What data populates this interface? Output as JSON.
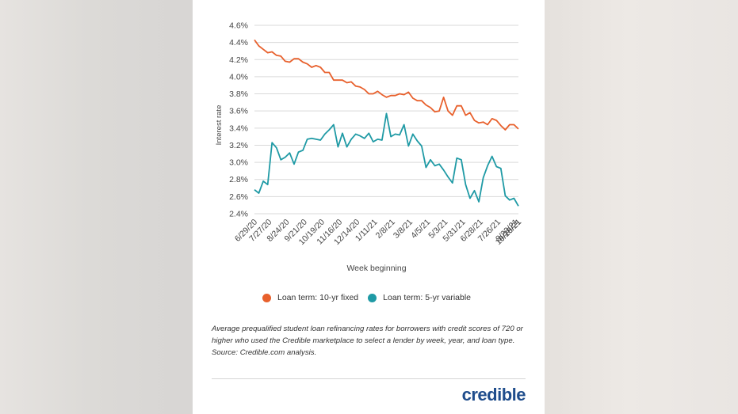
{
  "chart_data": {
    "type": "line",
    "xlabel": "Week beginning",
    "ylabel": "Interest rate",
    "ylim": [
      2.4,
      4.6
    ],
    "yticks": [
      "2.4%",
      "2.6%",
      "2.8%",
      "3.0%",
      "3.2%",
      "3.4%",
      "3.6%",
      "3.8%",
      "4.0%",
      "4.2%",
      "4.4%",
      "4.6%"
    ],
    "x_tick_labels": [
      "6/29/20",
      "7/27/20",
      "8/24/20",
      "9/21/20",
      "10/19/20",
      "11/16/20",
      "12/14/20",
      "1/11/21",
      "2/8/21",
      "3/8/21",
      "4/5/21",
      "5/3/21",
      "5/31/21",
      "6/28/21",
      "7/26/21",
      "8/23/21",
      "9/20/21",
      "10/18/21"
    ],
    "grid": "horizontal",
    "legend_position": "bottom",
    "series": [
      {
        "name": "Loan term: 10-yr fixed",
        "color": "#e8602c",
        "values": [
          4.43,
          4.36,
          4.32,
          4.28,
          4.29,
          4.25,
          4.24,
          4.18,
          4.17,
          4.21,
          4.21,
          4.17,
          4.15,
          4.11,
          4.13,
          4.11,
          4.05,
          4.05,
          3.96,
          3.96,
          3.96,
          3.93,
          3.94,
          3.89,
          3.88,
          3.85,
          3.8,
          3.8,
          3.83,
          3.79,
          3.76,
          3.78,
          3.78,
          3.8,
          3.79,
          3.82,
          3.75,
          3.72,
          3.72,
          3.67,
          3.64,
          3.59,
          3.6,
          3.76,
          3.6,
          3.55,
          3.66,
          3.66,
          3.55,
          3.58,
          3.49,
          3.46,
          3.47,
          3.44,
          3.51,
          3.49,
          3.43,
          3.38,
          3.44,
          3.44,
          3.39
        ]
      },
      {
        "name": "Loan term: 5-yr variable",
        "color": "#1f9aa5",
        "values": [
          2.68,
          2.64,
          2.78,
          2.74,
          3.23,
          3.17,
          3.03,
          3.06,
          3.11,
          2.98,
          3.12,
          3.14,
          3.27,
          3.28,
          3.27,
          3.26,
          3.33,
          3.38,
          3.44,
          3.18,
          3.34,
          3.18,
          3.27,
          3.33,
          3.31,
          3.28,
          3.34,
          3.24,
          3.27,
          3.26,
          3.57,
          3.3,
          3.33,
          3.32,
          3.44,
          3.19,
          3.33,
          3.25,
          3.19,
          2.94,
          3.03,
          2.96,
          2.98,
          2.91,
          2.83,
          2.76,
          3.05,
          3.03,
          2.74,
          2.58,
          2.67,
          2.54,
          2.82,
          2.96,
          3.07,
          2.95,
          2.93,
          2.61,
          2.56,
          2.58,
          2.49
        ]
      }
    ]
  },
  "caption": "Average prequalified student loan refinancing rates for borrowers with credit scores of 720 or higher who used the Credible marketplace to select a lender by week, year, and loan type. Source: Credible.com analysis.",
  "logo": "credible"
}
